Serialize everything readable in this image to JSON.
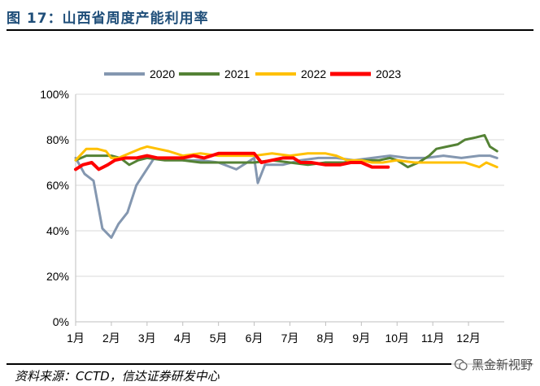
{
  "header": {
    "title": "图 17：山西省周度产能利用率"
  },
  "footer": {
    "source": "资料来源：CCTD，信达证券研发中心",
    "watermark": "黑金新视野"
  },
  "colors": {
    "2020": "#8497b0",
    "2021": "#548235",
    "2022": "#ffc000",
    "2023": "#ff0000"
  },
  "chart_data": {
    "type": "line",
    "title": "山西省周度产能利用率",
    "xlabel": "",
    "ylabel": "",
    "ylim": [
      0,
      100
    ],
    "xlim": [
      1,
      13
    ],
    "yticks": [
      "0%",
      "20%",
      "40%",
      "60%",
      "80%",
      "100%"
    ],
    "xticks": [
      "1月",
      "2月",
      "3月",
      "4月",
      "5月",
      "6月",
      "7月",
      "8月",
      "9月",
      "10月",
      "11月",
      "12月"
    ],
    "legend": [
      "2020",
      "2021",
      "2022",
      "2023"
    ],
    "legend_position": "top",
    "series": [
      {
        "name": "2020",
        "x": [
          1.0,
          1.25,
          1.5,
          1.75,
          2.0,
          2.2,
          2.45,
          2.7,
          3.2,
          3.4,
          3.7,
          4.0,
          4.5,
          5.0,
          5.5,
          5.8,
          6.0,
          6.1,
          6.3,
          6.8,
          7.3,
          7.8,
          8.3,
          8.8,
          9.3,
          9.8,
          10.3,
          10.8,
          11.3,
          11.8,
          12.3,
          12.6,
          12.8
        ],
        "y": [
          72,
          65,
          62,
          41,
          37,
          43,
          48,
          60,
          72,
          72,
          72,
          71,
          71,
          70,
          67,
          70,
          72,
          61,
          69,
          69,
          71,
          72,
          72,
          71,
          72,
          73,
          72,
          72,
          73,
          72,
          73,
          73,
          72
        ]
      },
      {
        "name": "2021",
        "x": [
          1.0,
          1.3,
          1.6,
          2.0,
          2.25,
          2.5,
          2.75,
          3.0,
          3.5,
          4.0,
          4.5,
          5.0,
          5.5,
          6.0,
          6.5,
          7.0,
          7.5,
          8.0,
          8.5,
          9.0,
          9.5,
          9.8,
          10.0,
          10.3,
          10.6,
          10.9,
          11.1,
          11.4,
          11.7,
          11.9,
          12.2,
          12.45,
          12.6,
          12.8
        ],
        "y": [
          71,
          73,
          73,
          73,
          72,
          69,
          71,
          72,
          71,
          71,
          70,
          70,
          70,
          70,
          71,
          70,
          69,
          70,
          70,
          71,
          71,
          72,
          71,
          68,
          70,
          73,
          76,
          77,
          78,
          80,
          81,
          82,
          77,
          75
        ]
      },
      {
        "name": "2022",
        "x": [
          1.0,
          1.3,
          1.6,
          1.85,
          2.0,
          2.2,
          2.5,
          2.8,
          3.0,
          3.3,
          3.6,
          4.0,
          4.5,
          5.0,
          5.5,
          6.0,
          6.5,
          7.0,
          7.5,
          8.0,
          8.3,
          8.6,
          8.8,
          9.0,
          9.3,
          9.6,
          10.0,
          10.5,
          11.0,
          11.3,
          11.6,
          11.9,
          12.1,
          12.3,
          12.5,
          12.8
        ],
        "y": [
          71,
          76,
          76,
          75,
          72,
          72,
          74,
          76,
          77,
          76,
          75,
          73,
          74,
          73,
          73,
          73,
          74,
          73,
          74,
          74,
          73,
          71,
          71,
          71,
          70,
          70,
          71,
          70,
          70,
          70,
          70,
          70,
          69,
          68,
          70,
          68
        ]
      },
      {
        "name": "2023",
        "x": [
          1.0,
          1.2,
          1.45,
          1.65,
          1.9,
          2.1,
          2.4,
          2.7,
          3.0,
          3.3,
          3.6,
          4.0,
          4.3,
          4.6,
          5.0,
          5.5,
          5.8,
          6.0,
          6.2,
          6.5,
          6.8,
          7.1,
          7.3,
          7.6,
          8.0,
          8.4,
          8.7,
          9.0,
          9.3,
          9.6,
          9.75
        ],
        "y": [
          67,
          69,
          70,
          67,
          69,
          71,
          72,
          72,
          73,
          72,
          72,
          72,
          73,
          72,
          74,
          74,
          74,
          74,
          70,
          71,
          72,
          72,
          70,
          70,
          69,
          69,
          70,
          70,
          68,
          68,
          68
        ]
      }
    ]
  }
}
